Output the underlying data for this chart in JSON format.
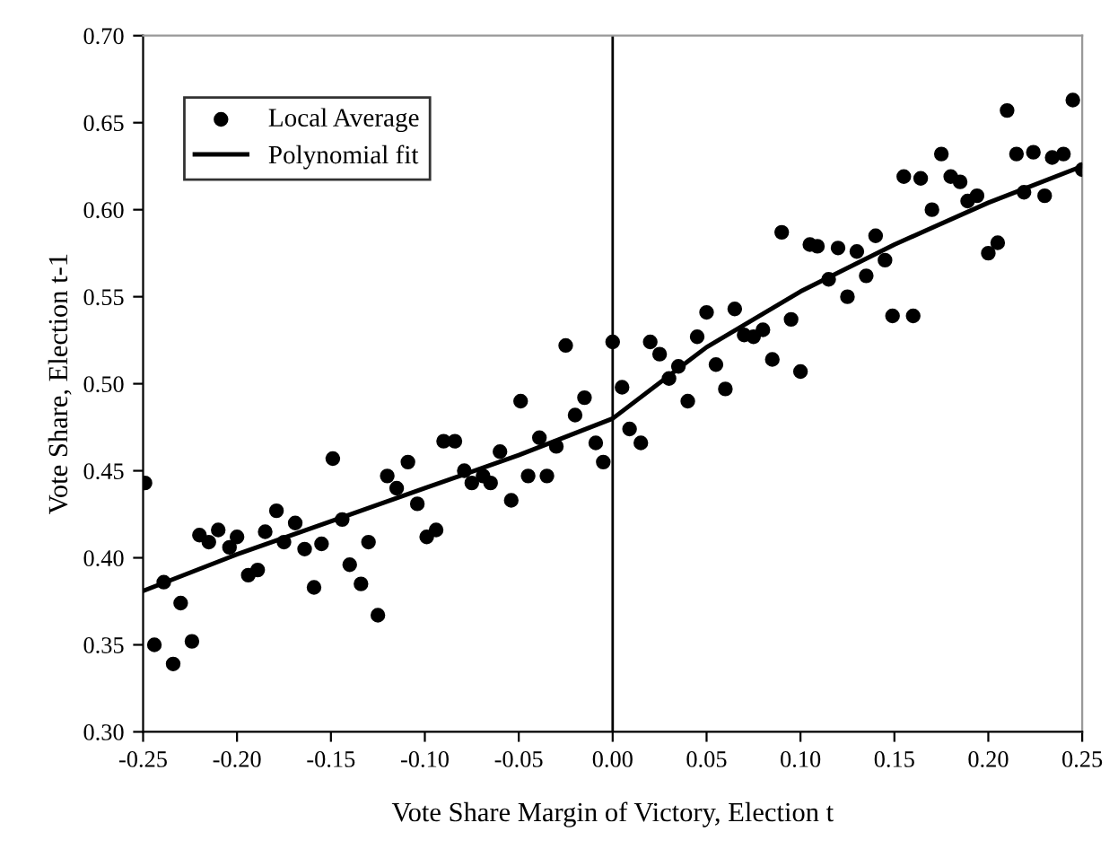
{
  "chart_data": {
    "type": "scatter",
    "xlabel": "Vote Share Margin of Victory, Election t",
    "ylabel": "Vote Share, Election t-1",
    "xlim": [
      -0.25,
      0.25
    ],
    "ylim": [
      0.3,
      0.7
    ],
    "xticks": [
      {
        "value": -0.25,
        "label": "-0.25"
      },
      {
        "value": -0.2,
        "label": "-0.20"
      },
      {
        "value": -0.15,
        "label": "-0.15"
      },
      {
        "value": -0.1,
        "label": "-0.10"
      },
      {
        "value": -0.05,
        "label": "-0.05"
      },
      {
        "value": 0,
        "label": "0.00"
      },
      {
        "value": 0.05,
        "label": "0.05"
      },
      {
        "value": 0.1,
        "label": "0.10"
      },
      {
        "value": 0.15,
        "label": "0.15"
      },
      {
        "value": 0.2,
        "label": "0.20"
      },
      {
        "value": 0.25,
        "label": "0.25"
      }
    ],
    "yticks": [
      {
        "value": 0.3,
        "label": "0.30"
      },
      {
        "value": 0.35,
        "label": "0.35"
      },
      {
        "value": 0.4,
        "label": "0.40"
      },
      {
        "value": 0.45,
        "label": "0.45"
      },
      {
        "value": 0.5,
        "label": "0.50"
      },
      {
        "value": 0.55,
        "label": "0.55"
      },
      {
        "value": 0.6,
        "label": "0.60"
      },
      {
        "value": 0.65,
        "label": "0.65"
      },
      {
        "value": 0.7,
        "label": "0.70"
      }
    ],
    "grid": false,
    "legend": "top left",
    "ref_lines": [
      {
        "axis": "x",
        "value": 0,
        "color": "#000000"
      }
    ],
    "series": [
      {
        "name": "Local Average",
        "marker": "circle",
        "color": "#000000",
        "x": [
          -0.249,
          -0.244,
          -0.239,
          -0.234,
          -0.23,
          -0.224,
          -0.22,
          -0.215,
          -0.21,
          -0.204,
          -0.2,
          -0.194,
          -0.189,
          -0.185,
          -0.179,
          -0.175,
          -0.169,
          -0.164,
          -0.159,
          -0.155,
          -0.149,
          -0.144,
          -0.14,
          -0.134,
          -0.13,
          -0.125,
          -0.12,
          -0.115,
          -0.109,
          -0.104,
          -0.099,
          -0.094,
          -0.09,
          -0.084,
          -0.079,
          -0.075,
          -0.069,
          -0.065,
          -0.06,
          -0.054,
          -0.049,
          -0.045,
          -0.039,
          -0.035,
          -0.03,
          -0.025,
          -0.02,
          -0.015,
          -0.009,
          -0.005,
          0.0,
          0.005,
          0.009,
          0.015,
          0.02,
          0.025,
          0.03,
          0.035,
          0.04,
          0.045,
          0.05,
          0.055,
          0.06,
          0.065,
          0.07,
          0.075,
          0.08,
          0.085,
          0.09,
          0.095,
          0.1,
          0.105,
          0.109,
          0.115,
          0.12,
          0.125,
          0.13,
          0.135,
          0.14,
          0.145,
          0.149,
          0.155,
          0.16,
          0.164,
          0.17,
          0.175,
          0.18,
          0.185,
          0.189,
          0.194,
          0.2,
          0.205,
          0.21,
          0.215,
          0.219,
          0.224,
          0.23,
          0.234,
          0.24,
          0.245,
          0.25
        ],
        "values": [
          0.443,
          0.35,
          0.386,
          0.339,
          0.374,
          0.352,
          0.413,
          0.409,
          0.416,
          0.406,
          0.412,
          0.39,
          0.393,
          0.415,
          0.427,
          0.409,
          0.42,
          0.405,
          0.383,
          0.408,
          0.457,
          0.422,
          0.396,
          0.385,
          0.409,
          0.367,
          0.447,
          0.44,
          0.455,
          0.431,
          0.412,
          0.416,
          0.467,
          0.467,
          0.45,
          0.443,
          0.447,
          0.443,
          0.461,
          0.433,
          0.49,
          0.447,
          0.469,
          0.447,
          0.464,
          0.522,
          0.482,
          0.492,
          0.466,
          0.455,
          0.524,
          0.498,
          0.474,
          0.466,
          0.524,
          0.517,
          0.503,
          0.51,
          0.49,
          0.527,
          0.541,
          0.511,
          0.497,
          0.543,
          0.528,
          0.527,
          0.531,
          0.514,
          0.587,
          0.537,
          0.507,
          0.58,
          0.579,
          0.56,
          0.578,
          0.55,
          0.576,
          0.562,
          0.585,
          0.571,
          0.539,
          0.619,
          0.539,
          0.618,
          0.6,
          0.632,
          0.619,
          0.616,
          0.605,
          0.608,
          0.575,
          0.581,
          0.657,
          0.632,
          0.61,
          0.633,
          0.608,
          0.63,
          0.632,
          0.663,
          0.623
        ]
      },
      {
        "name": "Polynomial fit",
        "type": "line",
        "marker": "none",
        "line_style": "solid",
        "color": "#000000",
        "x": [
          -0.25,
          -0.2,
          -0.15,
          -0.1,
          -0.05,
          0.0,
          0.0,
          0.05,
          0.1,
          0.15,
          0.2,
          0.25
        ],
        "values": [
          0.381,
          0.402,
          0.421,
          0.44,
          0.459,
          0.48,
          0.48,
          0.521,
          0.553,
          0.58,
          0.604,
          0.625
        ]
      }
    ]
  }
}
